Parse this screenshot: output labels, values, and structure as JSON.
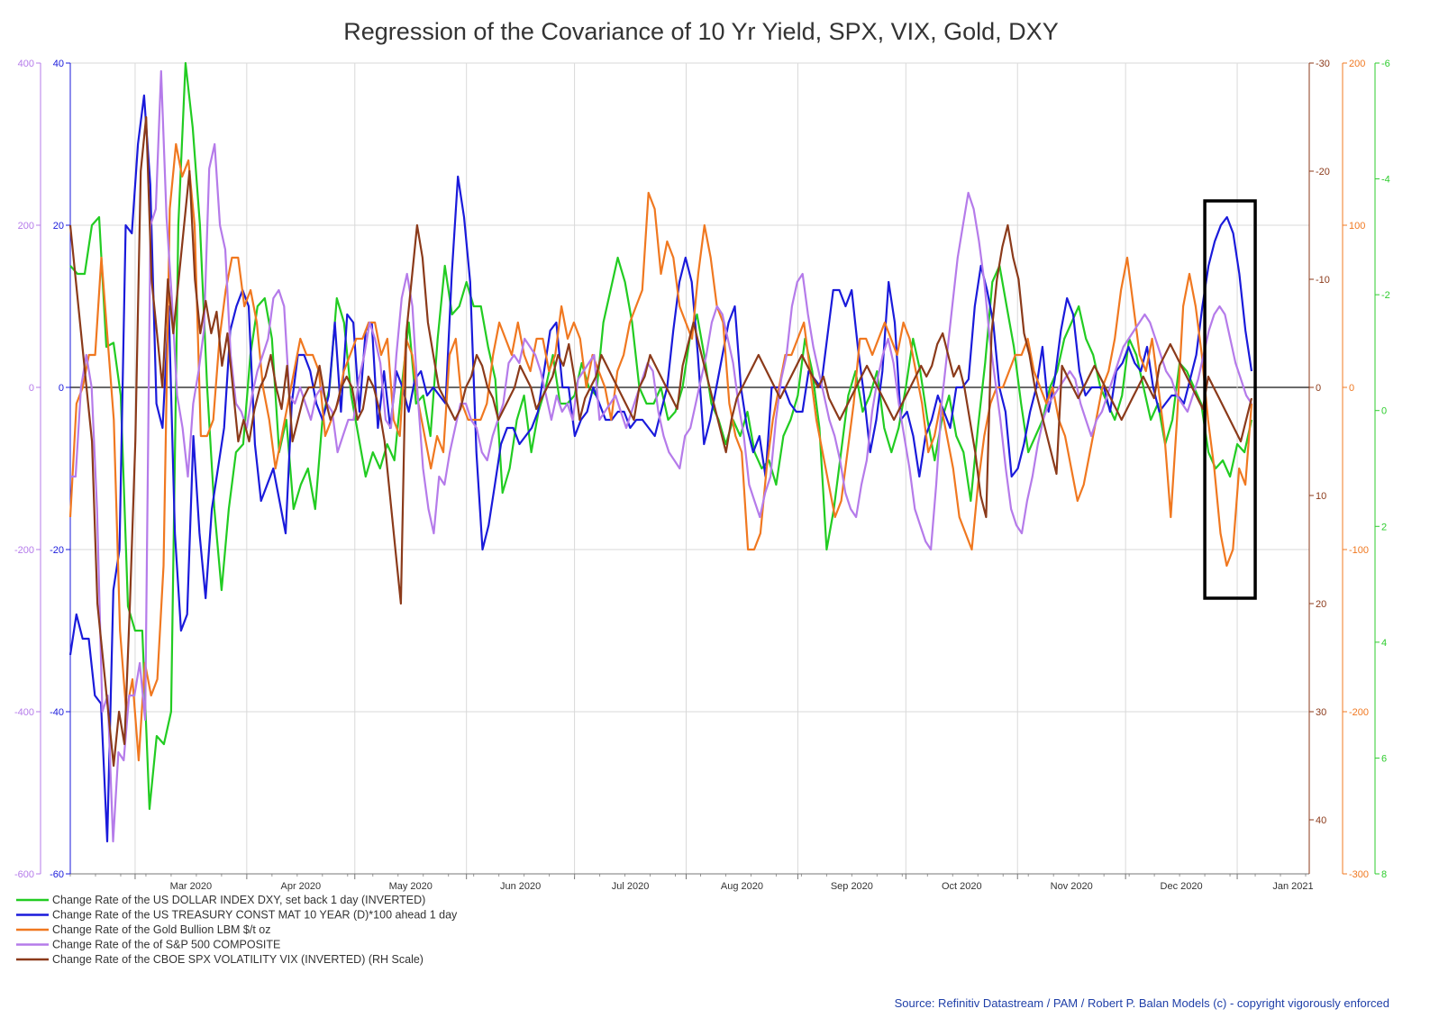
{
  "chart_data": {
    "type": "line",
    "title": "Regression of the Covariance of 10 Yr Yield, SPX, VIX, Gold, DXY",
    "source": "Source: Refinitiv Datastream / PAM / Robert P. Balan Models (c) - copyright vigorously enforced",
    "x_axis": {
      "labels": [
        "Mar 2020",
        "Apr 2020",
        "May 2020",
        "Jun 2020",
        "Jul 2020",
        "Aug 2020",
        "Sep 2020",
        "Oct 2020",
        "Nov 2020",
        "Dec 2020",
        "Jan 2021"
      ],
      "range": [
        "2020-02-12",
        "2021-01-21"
      ]
    },
    "axes": {
      "left_purple": {
        "ticks": [
          "400",
          "200",
          "0",
          "-200",
          "-400",
          "-600"
        ],
        "range": [
          -600,
          400
        ],
        "color": "#b57bea"
      },
      "left_blue": {
        "ticks": [
          "40",
          "20",
          "0",
          "-20",
          "-40",
          "-60"
        ],
        "range": [
          -60,
          40
        ],
        "color": "#1a1adb"
      },
      "right_brown": {
        "ticks": [
          "-30",
          "-20",
          "-10",
          "0",
          "10",
          "20",
          "30",
          "40"
        ],
        "range": [
          -30,
          45
        ],
        "inverted": true,
        "color": "#8b3a1a"
      },
      "right_orange": {
        "ticks": [
          "200",
          "100",
          "0",
          "-100",
          "-200",
          "-300"
        ],
        "range": [
          -300,
          200
        ],
        "color": "#f07820"
      },
      "right_green": {
        "ticks": [
          "-6",
          "-4",
          "-2",
          "0",
          "2",
          "4",
          "6",
          "8"
        ],
        "range": [
          -6,
          8
        ],
        "inverted": true,
        "color": "#2ecc2e"
      }
    },
    "grid": true,
    "legend_position": "bottom-left",
    "highlight_box": {
      "x_range": [
        "2020-12-23",
        "2021-01-06"
      ],
      "purple_range": [
        -260,
        230
      ]
    },
    "series": [
      {
        "name": "Change Rate of the US DOLLAR INDEX DXY, set back 1 day (INVERTED)",
        "color": "#22cc22",
        "axis": "left_purple",
        "values": [
          150,
          140,
          140,
          200,
          210,
          50,
          55,
          -10,
          -270,
          -300,
          -300,
          -520,
          -430,
          -440,
          -400,
          200,
          400,
          320,
          200,
          0,
          -150,
          -250,
          -150,
          -80,
          -70,
          40,
          100,
          110,
          60,
          -80,
          -40,
          -150,
          -120,
          -100,
          -150,
          -40,
          0,
          110,
          80,
          -10,
          -60,
          -110,
          -80,
          -100,
          -70,
          -90,
          0,
          80,
          -20,
          -10,
          -60,
          60,
          150,
          90,
          100,
          130,
          100,
          100,
          50,
          10,
          -130,
          -100,
          -40,
          -10,
          -80,
          -30,
          0,
          40,
          -20,
          -20,
          -10,
          30,
          0,
          -10,
          80,
          120,
          160,
          130,
          80,
          0,
          -20,
          -20,
          0,
          -40,
          -30,
          0,
          60,
          90,
          40,
          -20,
          -40,
          -70,
          -40,
          -60,
          -30,
          -80,
          -100,
          -90,
          -120,
          -60,
          -40,
          -10,
          60,
          20,
          -50,
          -200,
          -150,
          -80,
          -10,
          20,
          -30,
          -10,
          20,
          -50,
          -80,
          -50,
          0,
          60,
          20,
          -40,
          -90,
          -40,
          -10,
          -60,
          -80,
          -140,
          -50,
          30,
          130,
          150,
          100,
          50,
          -20,
          -80,
          -60,
          -40,
          0,
          20,
          60,
          80,
          100,
          60,
          40,
          0,
          -20,
          -40,
          -10,
          60,
          40,
          0,
          -40,
          -20,
          -70,
          -40,
          30,
          20,
          0,
          -20,
          -80,
          -100,
          -90,
          -110,
          -70,
          -80,
          -40
        ]
      },
      {
        "name": "Change Rate of the US TREASURY CONST MAT 10 YEAR (D)*100 ahead 1 day",
        "color": "#1a1adb",
        "axis": "left_blue",
        "values": [
          -33,
          -28,
          -31,
          -31,
          -38,
          -39,
          -56,
          -25,
          -20,
          20,
          19,
          30,
          36,
          25,
          -2,
          -5,
          10,
          -18,
          -30,
          -28,
          -6,
          -18,
          -26,
          -15,
          -10,
          -5,
          7,
          10,
          12,
          10,
          -7,
          -14,
          -12,
          -10,
          -14,
          -18,
          -2,
          4,
          4,
          2,
          -2,
          -4,
          -1,
          8,
          -3,
          9,
          8,
          -3,
          7,
          8,
          -5,
          2,
          -5,
          2,
          0,
          -3,
          1,
          2,
          -1,
          0,
          -1,
          -2,
          14,
          26,
          21,
          13,
          -8,
          -20,
          -17,
          -12,
          -7,
          -5,
          -5,
          -7,
          -6,
          -5,
          -3,
          2,
          7,
          8,
          0,
          0,
          -6,
          -4,
          -3,
          0,
          -2,
          -4,
          -4,
          -3,
          -3,
          -5,
          -4,
          -4,
          -5,
          -6,
          -3,
          0,
          7,
          13,
          16,
          13,
          4,
          -7,
          -4,
          0,
          4,
          8,
          10,
          0,
          -5,
          -8,
          -6,
          -11,
          0,
          0,
          0,
          -2,
          -3,
          -3,
          2,
          1,
          0,
          6,
          12,
          12,
          10,
          12,
          5,
          -1,
          -8,
          -4,
          2,
          13,
          8,
          -4,
          -3,
          -6,
          -11,
          -6,
          -4,
          -1,
          -3,
          -5,
          0,
          0,
          1,
          10,
          15,
          12,
          8,
          0,
          -3,
          -11,
          -10,
          -7,
          -3,
          0,
          5,
          -3,
          1,
          7,
          11,
          9,
          2,
          -1,
          0,
          0,
          0,
          -3,
          2,
          3,
          5,
          3,
          2,
          5,
          0,
          -3,
          -2,
          -1,
          -1,
          -2,
          1,
          4,
          10,
          15,
          18,
          20,
          21,
          19,
          14,
          7,
          2
        ]
      },
      {
        "name": "Change Rate of the Gold Bullion LBM $/t oz",
        "color": "#f07820",
        "axis": "right_orange",
        "values": [
          -80,
          -10,
          0,
          20,
          20,
          80,
          30,
          -20,
          -150,
          -200,
          -180,
          -230,
          -170,
          -190,
          -180,
          -110,
          110,
          150,
          130,
          140,
          100,
          -30,
          -30,
          -20,
          30,
          60,
          80,
          80,
          50,
          60,
          40,
          0,
          -20,
          -50,
          -30,
          -10,
          10,
          30,
          20,
          20,
          10,
          -30,
          -20,
          -10,
          10,
          20,
          30,
          30,
          40,
          40,
          20,
          30,
          -20,
          -30,
          30,
          20,
          -10,
          -30,
          -50,
          -30,
          -40,
          20,
          30,
          -10,
          -20,
          -20,
          -20,
          -10,
          20,
          40,
          30,
          20,
          40,
          20,
          10,
          30,
          30,
          10,
          20,
          50,
          30,
          40,
          30,
          0,
          20,
          10,
          0,
          -20,
          10,
          20,
          40,
          50,
          60,
          120,
          110,
          70,
          90,
          80,
          50,
          40,
          30,
          70,
          100,
          80,
          50,
          40,
          -10,
          -30,
          -40,
          -100,
          -100,
          -90,
          -50,
          -20,
          0,
          20,
          20,
          30,
          40,
          10,
          -20,
          -40,
          -60,
          -80,
          -70,
          -40,
          -10,
          30,
          30,
          20,
          30,
          40,
          30,
          20,
          40,
          30,
          10,
          -10,
          -40,
          -30,
          -10,
          -30,
          -50,
          -80,
          -90,
          -100,
          -60,
          -30,
          -10,
          0,
          0,
          10,
          20,
          20,
          30,
          10,
          0,
          -10,
          0,
          -20,
          -30,
          -50,
          -70,
          -60,
          -40,
          -20,
          0,
          10,
          30,
          60,
          80,
          50,
          20,
          10,
          30,
          0,
          -30,
          -80,
          -20,
          50,
          70,
          50,
          20,
          -20,
          -50,
          -90,
          -110,
          -100,
          -50,
          -60,
          -10
        ]
      },
      {
        "name": "Change Rate of the of S&P 500 COMPOSITE",
        "color": "#b57bea",
        "axis": "left_purple",
        "values": [
          -110,
          -110,
          0,
          40,
          0,
          -150,
          -400,
          -380,
          -560,
          -450,
          -460,
          -380,
          -380,
          -340,
          -410,
          200,
          220,
          390,
          210,
          110,
          -10,
          -50,
          -110,
          -20,
          20,
          70,
          270,
          300,
          200,
          170,
          40,
          -20,
          -30,
          -50,
          -10,
          20,
          40,
          60,
          110,
          120,
          100,
          -10,
          -20,
          0,
          -20,
          -40,
          -10,
          0,
          -20,
          -30,
          -80,
          -60,
          -40,
          -40,
          10,
          40,
          80,
          60,
          30,
          -40,
          -50,
          40,
          110,
          140,
          100,
          -10,
          -100,
          -150,
          -180,
          -110,
          -120,
          -80,
          -50,
          -20,
          -20,
          -40,
          -50,
          -80,
          -90,
          -60,
          -40,
          -20,
          30,
          40,
          30,
          60,
          50,
          40,
          20,
          -10,
          -40,
          -10,
          -30,
          -20,
          -40,
          10,
          20,
          30,
          40,
          -40,
          -30,
          -20,
          -10,
          -30,
          -50,
          -30,
          -10,
          10,
          30,
          20,
          -30,
          -60,
          -80,
          -90,
          -100,
          -60,
          -50,
          -20,
          10,
          40,
          80,
          100,
          90,
          60,
          30,
          -20,
          -60,
          -120,
          -140,
          -160,
          -130,
          -110,
          -40,
          10,
          40,
          100,
          130,
          140,
          90,
          50,
          20,
          -10,
          -40,
          -60,
          -90,
          -130,
          -150,
          -160,
          -120,
          -90,
          -30,
          10,
          40,
          60,
          30,
          -20,
          -60,
          -100,
          -150,
          -170,
          -190,
          -200,
          -120,
          -20,
          40,
          100,
          160,
          200,
          240,
          220,
          180,
          130,
          60,
          10,
          -40,
          -100,
          -150,
          -170,
          -180,
          -140,
          -110,
          -70,
          -40,
          -20,
          -10,
          0,
          10,
          20,
          10,
          -20,
          -40,
          -60,
          -40,
          -30,
          -10,
          10,
          30,
          50,
          60,
          70,
          80,
          90,
          80,
          60,
          40,
          20,
          10,
          -10,
          -20,
          -30,
          -10,
          10,
          40,
          70,
          90,
          100,
          90,
          60,
          30,
          10,
          -10,
          -20
        ]
      },
      {
        "name": "Change Rate of the CBOE SPX VOLATILITY VIX (INVERTED) (RH Scale)",
        "color": "#8b3a1a",
        "axis": "right_brown",
        "values": [
          -15,
          -10,
          -5,
          0,
          5,
          20,
          25,
          30,
          35,
          30,
          33,
          20,
          5,
          -20,
          -25,
          -10,
          -5,
          0,
          -10,
          -5,
          -10,
          -15,
          -20,
          -10,
          -5,
          -8,
          -5,
          -7,
          -2,
          -5,
          0,
          5,
          3,
          5,
          2,
          0,
          -1,
          -3,
          0,
          2,
          -2,
          5,
          3,
          1,
          0,
          0,
          -2,
          1,
          3,
          2,
          0,
          -1,
          0,
          3,
          2,
          -1,
          0,
          2,
          5,
          10,
          15,
          20,
          -5,
          -10,
          -15,
          -12,
          -6,
          -3,
          0,
          1,
          2,
          3,
          2,
          0,
          -1,
          -3,
          -2,
          0,
          1,
          3,
          2,
          1,
          0,
          -2,
          -1,
          0,
          2,
          1,
          0,
          -1,
          -3,
          -2,
          -4,
          -1,
          3,
          1,
          0,
          -1,
          -3,
          -2,
          -1,
          0,
          1,
          2,
          3,
          0,
          -1,
          -3,
          -2,
          -1,
          0,
          1,
          2,
          -2,
          -4,
          -6,
          -4,
          -2,
          0,
          2,
          4,
          6,
          3,
          1,
          0,
          -1,
          -2,
          -3,
          -2,
          -1,
          0,
          1,
          0,
          -1,
          -2,
          -3,
          -2,
          -1,
          0,
          -1,
          1,
          2,
          3,
          2,
          1,
          0,
          -1,
          -2,
          -1,
          0,
          1,
          2,
          3,
          2,
          1,
          0,
          -1,
          -2,
          -1,
          -2,
          -4,
          -5,
          -3,
          -1,
          -2,
          0,
          3,
          6,
          10,
          12,
          -5,
          -10,
          -13,
          -15,
          -12,
          -10,
          -5,
          -3,
          0,
          2,
          4,
          6,
          8,
          -2,
          -1,
          0,
          1,
          0,
          -1,
          -2,
          -1,
          0,
          1,
          2,
          3,
          2,
          1,
          0,
          -1,
          0,
          1,
          -2,
          -3,
          -4,
          -3,
          -2,
          -1,
          0,
          1,
          2,
          -1,
          0,
          1,
          2,
          3,
          4,
          5,
          3,
          1
        ]
      }
    ]
  },
  "legend": [
    {
      "label": "Change Rate of the US DOLLAR INDEX DXY, set back 1 day (INVERTED)",
      "color": "#22cc22"
    },
    {
      "label": "Change Rate of the US TREASURY CONST MAT 10 YEAR (D)*100 ahead 1 day",
      "color": "#1a1adb"
    },
    {
      "label": "Change Rate of the Gold Bullion LBM $/t oz",
      "color": "#f07820"
    },
    {
      "label": "Change Rate of the of S&P 500 COMPOSITE",
      "color": "#b57bea"
    },
    {
      "label": "Change Rate of the CBOE SPX VOLATILITY VIX (INVERTED) (RH Scale)",
      "color": "#8b3a1a"
    }
  ]
}
